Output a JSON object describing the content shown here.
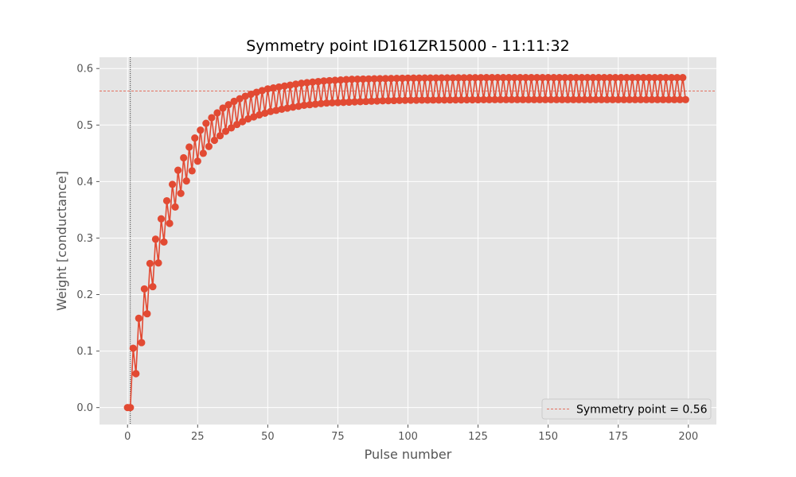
{
  "chart_data": {
    "type": "line",
    "title": "Symmetry point ID161ZR15000 - 11:11:32",
    "xlabel": "Pulse number",
    "ylabel": "Weight [conductance]",
    "xlim": [
      -10,
      210
    ],
    "ylim": [
      -0.03,
      0.62
    ],
    "xticks": [
      0,
      25,
      50,
      75,
      100,
      125,
      150,
      175,
      200
    ],
    "yticks": [
      0.0,
      0.1,
      0.2,
      0.3,
      0.4,
      0.5,
      0.6
    ],
    "xtick_labels": [
      "0",
      "25",
      "50",
      "75",
      "100",
      "125",
      "150",
      "175",
      "200"
    ],
    "ytick_labels": [
      "0.0",
      "0.1",
      "0.2",
      "0.3",
      "0.4",
      "0.5",
      "0.6"
    ],
    "grid": true,
    "legend_position": "lower-right",
    "series": [
      {
        "color": "#E24A33",
        "marker": "circle",
        "x_start": 0,
        "x_end": 199,
        "upper_envelope": [
          [
            2,
            0.105
          ],
          [
            4,
            0.158
          ],
          [
            6,
            0.21
          ],
          [
            8,
            0.255
          ],
          [
            10,
            0.298
          ],
          [
            12,
            0.334
          ],
          [
            14,
            0.366
          ],
          [
            16,
            0.395
          ],
          [
            18,
            0.42
          ],
          [
            20,
            0.442
          ],
          [
            22,
            0.461
          ],
          [
            24,
            0.477
          ],
          [
            26,
            0.491
          ],
          [
            28,
            0.503
          ],
          [
            30,
            0.513
          ],
          [
            34,
            0.53
          ],
          [
            38,
            0.542
          ],
          [
            42,
            0.551
          ],
          [
            46,
            0.558
          ],
          [
            50,
            0.564
          ],
          [
            56,
            0.569
          ],
          [
            62,
            0.574
          ],
          [
            70,
            0.578
          ],
          [
            80,
            0.581
          ],
          [
            90,
            0.582
          ],
          [
            100,
            0.583
          ],
          [
            130,
            0.584
          ],
          [
            198,
            0.584
          ]
        ],
        "lower_envelope": [
          [
            1,
            0.0
          ],
          [
            3,
            0.06
          ],
          [
            5,
            0.115
          ],
          [
            7,
            0.166
          ],
          [
            9,
            0.214
          ],
          [
            11,
            0.256
          ],
          [
            13,
            0.293
          ],
          [
            15,
            0.326
          ],
          [
            17,
            0.355
          ],
          [
            19,
            0.379
          ],
          [
            21,
            0.401
          ],
          [
            23,
            0.419
          ],
          [
            25,
            0.436
          ],
          [
            27,
            0.45
          ],
          [
            29,
            0.462
          ],
          [
            31,
            0.473
          ],
          [
            35,
            0.489
          ],
          [
            39,
            0.501
          ],
          [
            43,
            0.511
          ],
          [
            47,
            0.518
          ],
          [
            51,
            0.524
          ],
          [
            57,
            0.53
          ],
          [
            63,
            0.535
          ],
          [
            71,
            0.539
          ],
          [
            81,
            0.541
          ],
          [
            91,
            0.543
          ],
          [
            101,
            0.544
          ],
          [
            131,
            0.545
          ],
          [
            199,
            0.545
          ]
        ],
        "first_value": 0.0
      }
    ],
    "reference_lines": [
      {
        "orientation": "horizontal",
        "y": 0.56,
        "color": "#E24A33",
        "style": "dashed",
        "label": "Symmetry point = 0.56"
      },
      {
        "orientation": "vertical",
        "x": 1,
        "color": "#000000",
        "style": "dotted"
      }
    ]
  }
}
